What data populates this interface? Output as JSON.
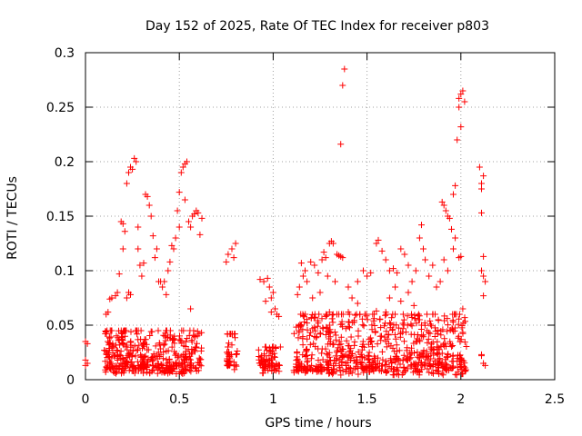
{
  "chart_data": {
    "type": "scatter",
    "title": "Day 152 of 2025, Rate Of TEC Index for receiver p803",
    "xlabel": "GPS time / hours",
    "ylabel": "ROTI / TECUs",
    "xlim": [
      0,
      2.5
    ],
    "ylim": [
      0,
      0.3
    ],
    "xticks": [
      0,
      0.5,
      1,
      1.5,
      2,
      2.5
    ],
    "xtick_labels": [
      "0",
      "0.5",
      "1",
      "1.5",
      "2",
      "2.5"
    ],
    "yticks": [
      0,
      0.05,
      0.1,
      0.15,
      0.2,
      0.25,
      0.3
    ],
    "ytick_labels": [
      "0",
      "0.05",
      "0.1",
      "0.15",
      "0.2",
      "0.25",
      "0.3"
    ],
    "grid": true,
    "marker": "+",
    "marker_color": "#ff0000",
    "series": [
      {
        "name": "ROTI",
        "points": [
          [
            0.0,
            0.035
          ],
          [
            0.01,
            0.033
          ],
          [
            0.0,
            0.018
          ],
          [
            0.01,
            0.015
          ],
          [
            0.0,
            0.013
          ],
          [
            0.11,
            0.06
          ],
          [
            0.12,
            0.062
          ],
          [
            0.13,
            0.074
          ],
          [
            0.14,
            0.075
          ],
          [
            0.16,
            0.077
          ],
          [
            0.17,
            0.08
          ],
          [
            0.18,
            0.097
          ],
          [
            0.19,
            0.145
          ],
          [
            0.2,
            0.143
          ],
          [
            0.21,
            0.136
          ],
          [
            0.22,
            0.18
          ],
          [
            0.23,
            0.19
          ],
          [
            0.24,
            0.195
          ],
          [
            0.25,
            0.193
          ],
          [
            0.26,
            0.203
          ],
          [
            0.27,
            0.2
          ],
          [
            0.22,
            0.075
          ],
          [
            0.23,
            0.08
          ],
          [
            0.24,
            0.078
          ],
          [
            0.2,
            0.12
          ],
          [
            0.28,
            0.14
          ],
          [
            0.28,
            0.12
          ],
          [
            0.29,
            0.105
          ],
          [
            0.3,
            0.095
          ],
          [
            0.31,
            0.107
          ],
          [
            0.32,
            0.17
          ],
          [
            0.33,
            0.168
          ],
          [
            0.34,
            0.16
          ],
          [
            0.35,
            0.15
          ],
          [
            0.36,
            0.132
          ],
          [
            0.37,
            0.112
          ],
          [
            0.38,
            0.12
          ],
          [
            0.39,
            0.09
          ],
          [
            0.4,
            0.09
          ],
          [
            0.41,
            0.085
          ],
          [
            0.42,
            0.09
          ],
          [
            0.43,
            0.078
          ],
          [
            0.44,
            0.1
          ],
          [
            0.45,
            0.108
          ],
          [
            0.46,
            0.123
          ],
          [
            0.47,
            0.12
          ],
          [
            0.48,
            0.13
          ],
          [
            0.49,
            0.155
          ],
          [
            0.5,
            0.14
          ],
          [
            0.51,
            0.19
          ],
          [
            0.52,
            0.195
          ],
          [
            0.53,
            0.198
          ],
          [
            0.54,
            0.2
          ],
          [
            0.5,
            0.172
          ],
          [
            0.53,
            0.165
          ],
          [
            0.55,
            0.145
          ],
          [
            0.56,
            0.14
          ],
          [
            0.57,
            0.15
          ],
          [
            0.58,
            0.152
          ],
          [
            0.59,
            0.155
          ],
          [
            0.6,
            0.153
          ],
          [
            0.61,
            0.133
          ],
          [
            0.62,
            0.148
          ],
          [
            0.56,
            0.065
          ],
          [
            0.75,
            0.108
          ],
          [
            0.76,
            0.115
          ],
          [
            0.78,
            0.12
          ],
          [
            0.8,
            0.125
          ],
          [
            0.79,
            0.112
          ],
          [
            0.93,
            0.092
          ],
          [
            0.95,
            0.09
          ],
          [
            0.97,
            0.093
          ],
          [
            0.98,
            0.085
          ],
          [
            0.99,
            0.075
          ],
          [
            1.0,
            0.08
          ],
          [
            1.01,
            0.065
          ],
          [
            1.02,
            0.06
          ],
          [
            1.03,
            0.058
          ],
          [
            0.96,
            0.072
          ],
          [
            0.99,
            0.062
          ],
          [
            1.13,
            0.078
          ],
          [
            1.14,
            0.085
          ],
          [
            1.15,
            0.107
          ],
          [
            1.16,
            0.095
          ],
          [
            1.17,
            0.1
          ],
          [
            1.18,
            0.09
          ],
          [
            1.2,
            0.108
          ],
          [
            1.22,
            0.105
          ],
          [
            1.24,
            0.098
          ],
          [
            1.26,
            0.11
          ],
          [
            1.27,
            0.117
          ],
          [
            1.28,
            0.112
          ],
          [
            1.3,
            0.125
          ],
          [
            1.31,
            0.127
          ],
          [
            1.32,
            0.125
          ],
          [
            1.34,
            0.115
          ],
          [
            1.35,
            0.114
          ],
          [
            1.36,
            0.113
          ],
          [
            1.37,
            0.112
          ],
          [
            1.29,
            0.095
          ],
          [
            1.33,
            0.09
          ],
          [
            1.25,
            0.08
          ],
          [
            1.21,
            0.075
          ],
          [
            1.38,
            0.285
          ],
          [
            1.37,
            0.27
          ],
          [
            1.36,
            0.216
          ],
          [
            1.4,
            0.085
          ],
          [
            1.42,
            0.075
          ],
          [
            1.45,
            0.09
          ],
          [
            1.48,
            0.1
          ],
          [
            1.5,
            0.095
          ],
          [
            1.52,
            0.098
          ],
          [
            1.55,
            0.125
          ],
          [
            1.56,
            0.128
          ],
          [
            1.58,
            0.118
          ],
          [
            1.6,
            0.11
          ],
          [
            1.62,
            0.1
          ],
          [
            1.64,
            0.102
          ],
          [
            1.66,
            0.098
          ],
          [
            1.68,
            0.12
          ],
          [
            1.7,
            0.115
          ],
          [
            1.72,
            0.105
          ],
          [
            1.74,
            0.09
          ],
          [
            1.76,
            0.1
          ],
          [
            1.78,
            0.13
          ],
          [
            1.79,
            0.142
          ],
          [
            1.8,
            0.12
          ],
          [
            1.81,
            0.11
          ],
          [
            1.83,
            0.095
          ],
          [
            1.85,
            0.105
          ],
          [
            1.87,
            0.085
          ],
          [
            1.9,
            0.163
          ],
          [
            1.91,
            0.16
          ],
          [
            1.92,
            0.155
          ],
          [
            1.93,
            0.15
          ],
          [
            1.94,
            0.148
          ],
          [
            1.95,
            0.138
          ],
          [
            1.96,
            0.17
          ],
          [
            1.97,
            0.178
          ],
          [
            1.98,
            0.22
          ],
          [
            1.97,
            0.13
          ],
          [
            1.96,
            0.12
          ],
          [
            1.99,
            0.112
          ],
          [
            2.0,
            0.113
          ],
          [
            1.99,
            0.25
          ],
          [
            2.0,
            0.262
          ],
          [
            2.01,
            0.265
          ],
          [
            1.99,
            0.258
          ],
          [
            2.02,
            0.255
          ],
          [
            2.0,
            0.232
          ],
          [
            2.01,
            0.065
          ],
          [
            1.89,
            0.09
          ],
          [
            1.91,
            0.11
          ],
          [
            1.93,
            0.1
          ],
          [
            2.1,
            0.195
          ],
          [
            2.11,
            0.18
          ],
          [
            2.12,
            0.187
          ],
          [
            2.11,
            0.175
          ],
          [
            2.11,
            0.153
          ],
          [
            2.12,
            0.113
          ],
          [
            2.11,
            0.1
          ],
          [
            2.12,
            0.095
          ],
          [
            2.13,
            0.09
          ],
          [
            2.12,
            0.077
          ],
          [
            2.11,
            0.022
          ],
          [
            2.12,
            0.015
          ],
          [
            2.13,
            0.013
          ],
          [
            2.11,
            0.023
          ],
          [
            1.6,
            0.062
          ],
          [
            1.62,
            0.075
          ],
          [
            1.65,
            0.085
          ],
          [
            1.68,
            0.072
          ],
          [
            1.72,
            0.08
          ],
          [
            1.75,
            0.068
          ],
          [
            1.53,
            0.06
          ],
          [
            1.55,
            0.063
          ],
          [
            1.45,
            0.07
          ],
          [
            1.4,
            0.062
          ],
          [
            1.35,
            0.06
          ],
          [
            1.3,
            0.062
          ],
          [
            1.28,
            0.058
          ],
          [
            1.24,
            0.052
          ],
          [
            1.22,
            0.048
          ],
          [
            1.18,
            0.052
          ],
          [
            1.15,
            0.05
          ],
          [
            1.82,
            0.045
          ],
          [
            1.85,
            0.06
          ],
          [
            1.88,
            0.055
          ],
          [
            1.78,
            0.055
          ],
          [
            1.79,
            0.05
          ]
        ]
      }
    ],
    "dense_clusters": [
      {
        "x": [
          0.1,
          0.62
        ],
        "y": [
          0.005,
          0.045
        ],
        "count": 420
      },
      {
        "x": [
          0.75,
          0.81
        ],
        "y": [
          0.008,
          0.042
        ],
        "count": 45
      },
      {
        "x": [
          0.92,
          1.04
        ],
        "y": [
          0.005,
          0.03
        ],
        "count": 70
      },
      {
        "x": [
          1.11,
          2.03
        ],
        "y": [
          0.004,
          0.06
        ],
        "count": 700
      }
    ]
  }
}
